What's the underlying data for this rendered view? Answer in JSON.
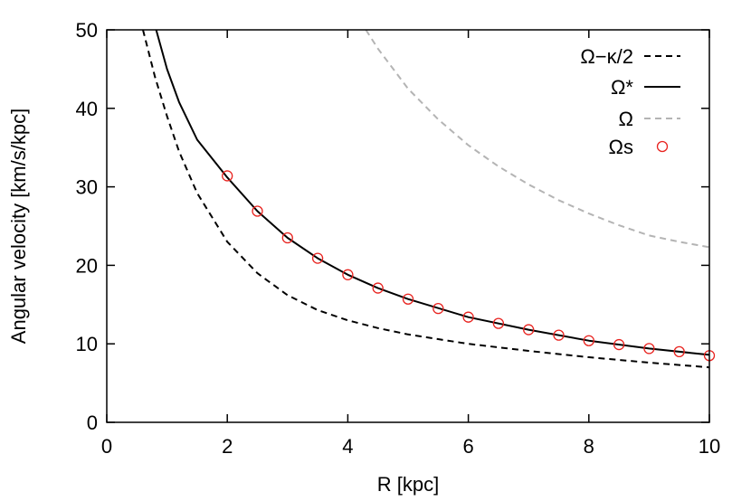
{
  "chart_data": {
    "type": "line",
    "xlabel": "R [kpc]",
    "ylabel": "Angular velocity [km/s/kpc]",
    "xlim": [
      0,
      10
    ],
    "ylim": [
      0,
      50
    ],
    "x_ticks": [
      "0",
      "2",
      "4",
      "6",
      "8",
      "10"
    ],
    "y_ticks": [
      "0",
      "10",
      "20",
      "30",
      "40",
      "50"
    ],
    "grid": false,
    "legend_position": "top-right",
    "series": [
      {
        "name": "Ω−κ/2",
        "style": "dashed",
        "color": "#000000",
        "x": [
          0.6,
          0.8,
          1.0,
          1.2,
          1.5,
          2.0,
          2.5,
          3.0,
          3.5,
          4.0,
          4.5,
          5.0,
          6.0,
          7.0,
          8.0,
          9.0,
          10.0
        ],
        "y": [
          50.0,
          44.0,
          39.0,
          34.5,
          29.2,
          23.0,
          19.0,
          16.2,
          14.3,
          13.0,
          12.0,
          11.2,
          10.0,
          9.1,
          8.3,
          7.6,
          7.0
        ]
      },
      {
        "name": "Ω*",
        "style": "solid",
        "color": "#000000",
        "x": [
          0.82,
          1.0,
          1.2,
          1.5,
          2.0,
          2.5,
          3.0,
          3.5,
          4.0,
          4.5,
          5.0,
          6.0,
          7.0,
          8.0,
          9.0,
          10.0
        ],
        "y": [
          50.0,
          45.0,
          40.8,
          36.0,
          31.2,
          26.9,
          23.5,
          20.9,
          18.8,
          17.1,
          15.7,
          13.4,
          11.8,
          10.4,
          9.4,
          8.6
        ]
      },
      {
        "name": "Ω",
        "style": "dashed",
        "color": "#b4b4b4",
        "x": [
          4.3,
          4.5,
          5.0,
          5.5,
          6.0,
          6.5,
          7.0,
          7.5,
          8.0,
          8.5,
          9.0,
          9.5,
          10.0
        ],
        "y": [
          50.0,
          47.6,
          42.5,
          38.6,
          35.3,
          32.6,
          30.3,
          28.3,
          26.6,
          25.1,
          23.8,
          23.0,
          22.3
        ]
      },
      {
        "name": "Ωs",
        "style": "markers",
        "color": "#e8231f",
        "x": [
          2.0,
          2.5,
          3.0,
          3.5,
          4.0,
          4.5,
          5.0,
          5.5,
          6.0,
          6.5,
          7.0,
          7.5,
          8.0,
          8.5,
          9.0,
          9.5,
          10.0
        ],
        "y": [
          31.4,
          26.9,
          23.5,
          20.9,
          18.8,
          17.1,
          15.7,
          14.5,
          13.4,
          12.6,
          11.8,
          11.1,
          10.4,
          9.9,
          9.4,
          9.0,
          8.5
        ]
      }
    ]
  }
}
